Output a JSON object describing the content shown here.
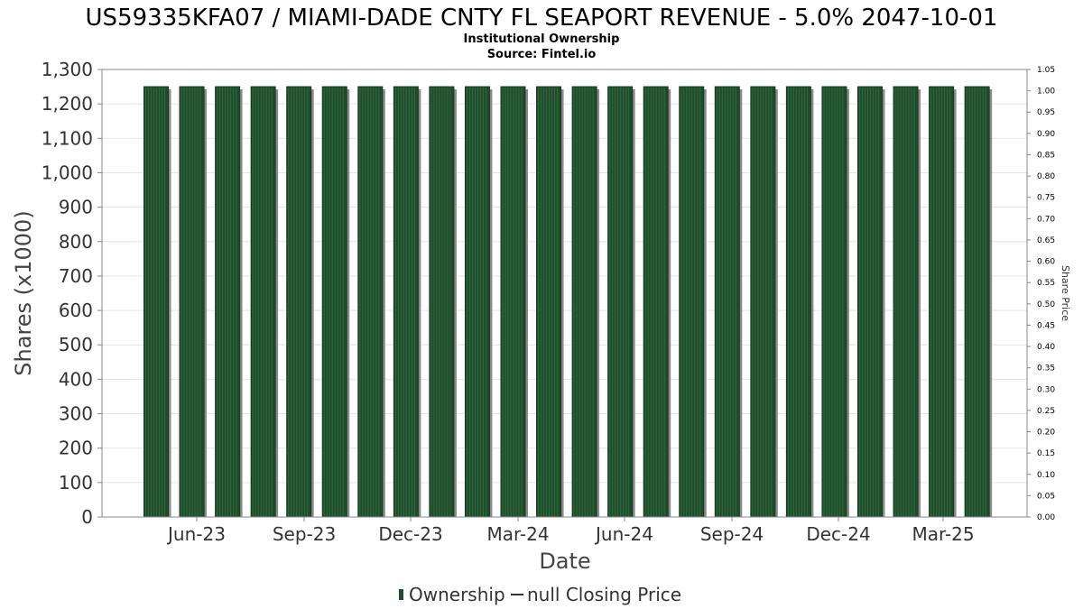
{
  "title": "US59335KFA07 / MIAMI-DADE CNTY FL SEAPORT REVENUE - 5.0% 2047-10-01",
  "subtitle_lines": [
    "Institutional Ownership",
    "Source: Fintel.io"
  ],
  "colors": {
    "bar_fill": "#1f4d2b",
    "bar_stripe": "#2f6a3d",
    "bar_shadow": "#8a8a8a",
    "grid": "#e6e6e6",
    "axis": "#888888"
  },
  "chart_data": {
    "type": "bar",
    "xlabel": "Date",
    "ylabel": "Shares (x1000)",
    "ylabel_right": "Share Price",
    "ylim": [
      0,
      1300
    ],
    "ylim_right": [
      0,
      1.05
    ],
    "yticks": [
      "0",
      "100",
      "200",
      "300",
      "400",
      "500",
      "600",
      "700",
      "800",
      "900",
      "1,000",
      "1,100",
      "1,200",
      "1,300"
    ],
    "yticks_right": [
      "0.00",
      "0.05",
      "0.10",
      "0.15",
      "0.20",
      "0.25",
      "0.30",
      "0.35",
      "0.40",
      "0.45",
      "0.50",
      "0.55",
      "0.60",
      "0.65",
      "0.70",
      "0.75",
      "0.80",
      "0.85",
      "0.90",
      "0.95",
      "1.00",
      "1.05"
    ],
    "x_tick_labels": [
      "Jun-23",
      "Sep-23",
      "Dec-23",
      "Mar-24",
      "Jun-24",
      "Sep-24",
      "Dec-24",
      "Mar-25"
    ],
    "grid": true,
    "legend_position": "bottom",
    "series": [
      {
        "name": "Ownership",
        "values": [
          1250,
          1250,
          1250,
          1250,
          1250,
          1250,
          1250,
          1250,
          1250,
          1250,
          1250,
          1250,
          1250,
          1250,
          1250,
          1250,
          1250,
          1250,
          1250,
          1250,
          1250,
          1250,
          1250,
          1250
        ]
      },
      {
        "name": "null Closing Price",
        "values": []
      }
    ]
  }
}
